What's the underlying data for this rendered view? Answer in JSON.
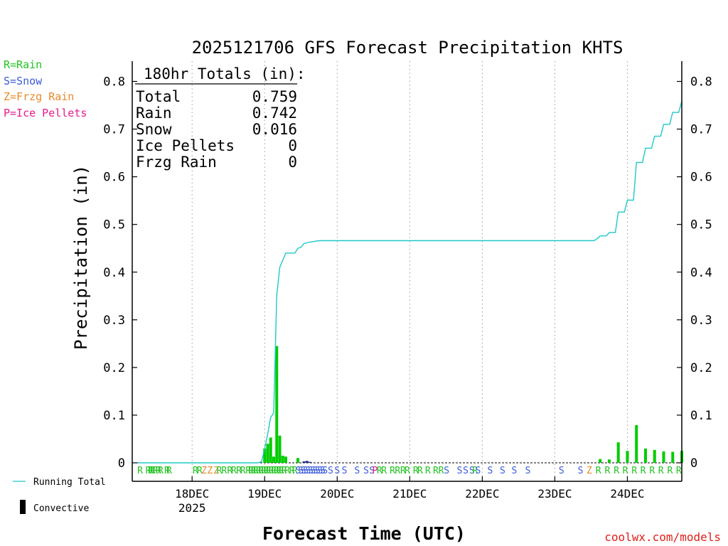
{
  "title": "2025121706 GFS Forecast Precipitation KHTS",
  "legend_types": [
    {
      "label": "R=Rain",
      "color": "#22c322"
    },
    {
      "label": "S=Snow",
      "color": "#3b5bdb"
    },
    {
      "label": "Z=Frzg Rain",
      "color": "#e8892a"
    },
    {
      "label": "P=Ice Pellets",
      "color": "#e6198c"
    }
  ],
  "totals": {
    "header": "180hr Totals (in):",
    "rows": [
      {
        "label": "Total",
        "value": "0.759"
      },
      {
        "label": "Rain",
        "value": "0.742"
      },
      {
        "label": "Snow",
        "value": "0.016"
      },
      {
        "label": "Ice Pellets",
        "value": "0"
      },
      {
        "label": "Frzg Rain",
        "value": "0"
      }
    ]
  },
  "bottom_legend": {
    "running_total": "Running Total",
    "convective": "Convective"
  },
  "credit": "coolwx.com/models",
  "colors": {
    "running_total": "#20c8c8",
    "rain_bar": "#00cc00",
    "snow_bar": "#1a2a8c",
    "convective": "#000000",
    "rain_text": "#22c322",
    "snow_text": "#3b5bdb",
    "zr_text": "#e8892a"
  },
  "chart_data": {
    "type": "bar",
    "title": "2025121706 GFS Forecast Precipitation KHTS",
    "xlabel": "Forecast Time (UTC)",
    "ylabel": "Precipitation (in)",
    "ylim": [
      0,
      0.84
    ],
    "xlim_hours": [
      0,
      180
    ],
    "y_ticks": [
      0,
      0.1,
      0.2,
      0.3,
      0.4,
      0.5,
      0.6,
      0.7,
      0.8
    ],
    "y_tick_labels": [
      "0",
      "0.1",
      "0.2",
      "0.3",
      "0.4",
      "0.5",
      "0.6",
      "0.7",
      "0.8"
    ],
    "x_ticks": [
      {
        "hour": 18,
        "label": "18DEC",
        "sublabel": "2025"
      },
      {
        "hour": 42,
        "label": "19DEC"
      },
      {
        "hour": 66,
        "label": "20DEC"
      },
      {
        "hour": 90,
        "label": "21DEC"
      },
      {
        "hour": 114,
        "label": "22DEC"
      },
      {
        "hour": 138,
        "label": "23DEC"
      },
      {
        "hour": 162,
        "label": "24DEC"
      }
    ],
    "grid": "vertical dotted",
    "series": [
      {
        "name": "Running Total",
        "type": "line",
        "points": [
          [
            0,
            0
          ],
          [
            40,
            0
          ],
          [
            41,
            0.003
          ],
          [
            42,
            0.03
          ],
          [
            43,
            0.06
          ],
          [
            44,
            0.095
          ],
          [
            45,
            0.105
          ],
          [
            46,
            0.35
          ],
          [
            47,
            0.41
          ],
          [
            48,
            0.425
          ],
          [
            49,
            0.44
          ],
          [
            51,
            0.44
          ],
          [
            52,
            0.44
          ],
          [
            53,
            0.45
          ],
          [
            54,
            0.452
          ],
          [
            55,
            0.46
          ],
          [
            57,
            0.463
          ],
          [
            60,
            0.466
          ],
          [
            63,
            0.466
          ],
          [
            90,
            0.466
          ],
          [
            120,
            0.466
          ],
          [
            151,
            0.466
          ],
          [
            152,
            0.47
          ],
          [
            153,
            0.476
          ],
          [
            155,
            0.476
          ],
          [
            156,
            0.483
          ],
          [
            158,
            0.483
          ],
          [
            159,
            0.526
          ],
          [
            161,
            0.526
          ],
          [
            162,
            0.551
          ],
          [
            164,
            0.551
          ],
          [
            165,
            0.63
          ],
          [
            167,
            0.63
          ],
          [
            168,
            0.66
          ],
          [
            170,
            0.66
          ],
          [
            171,
            0.685
          ],
          [
            173,
            0.685
          ],
          [
            174,
            0.71
          ],
          [
            176,
            0.71
          ],
          [
            177,
            0.735
          ],
          [
            179,
            0.735
          ],
          [
            180,
            0.759
          ]
        ]
      },
      {
        "name": "Rain",
        "type": "bar",
        "points": [
          [
            42,
            0.03
          ],
          [
            43,
            0.04
          ],
          [
            44,
            0.053
          ],
          [
            45,
            0.013
          ],
          [
            46,
            0.245
          ],
          [
            47,
            0.057
          ],
          [
            48,
            0.015
          ],
          [
            49,
            0.013
          ],
          [
            53,
            0.01
          ],
          [
            153,
            0.008
          ],
          [
            156,
            0.007
          ],
          [
            159,
            0.043
          ],
          [
            162,
            0.025
          ],
          [
            165,
            0.079
          ],
          [
            168,
            0.03
          ],
          [
            171,
            0.027
          ],
          [
            174,
            0.024
          ],
          [
            177,
            0.023
          ],
          [
            180,
            0.025
          ]
        ]
      },
      {
        "name": "Snow",
        "type": "bar",
        "points": [
          [
            55,
            0.003
          ],
          [
            56,
            0.004
          ],
          [
            57,
            0.002
          ]
        ]
      }
    ],
    "ptype_strip": [
      {
        "hour": 0.8,
        "t": "R"
      },
      {
        "hour": 3.5,
        "t": "R"
      },
      {
        "hour": 4.3,
        "t": "R"
      },
      {
        "hour": 5.0,
        "t": "R"
      },
      {
        "hour": 5.8,
        "t": "R"
      },
      {
        "hour": 6.9,
        "t": "R"
      },
      {
        "hour": 7.6,
        "t": "R"
      },
      {
        "hour": 9.7,
        "t": "R"
      },
      {
        "hour": 10.4,
        "t": "R"
      },
      {
        "hour": 19.1,
        "t": "R"
      },
      {
        "hour": 20.5,
        "t": "R"
      },
      {
        "hour": 22.0,
        "t": "Z"
      },
      {
        "hour": 23.9,
        "t": "Z"
      },
      {
        "hour": 26.0,
        "t": "Z"
      },
      {
        "hour": 27.0,
        "t": "R"
      },
      {
        "hour": 28.6,
        "t": "R"
      },
      {
        "hour": 30.5,
        "t": "R"
      },
      {
        "hour": 31.8,
        "t": "R"
      },
      {
        "hour": 33.5,
        "t": "R"
      },
      {
        "hour": 34.8,
        "t": "R"
      },
      {
        "hour": 36.6,
        "t": "R"
      },
      {
        "hour": 37.5,
        "t": "R"
      },
      {
        "hour": 38.3,
        "t": "R"
      },
      {
        "hour": 39.1,
        "t": "R"
      },
      {
        "hour": 40.0,
        "t": "R"
      },
      {
        "hour": 40.8,
        "t": "R"
      },
      {
        "hour": 41.7,
        "t": "R"
      },
      {
        "hour": 42.5,
        "t": "R"
      },
      {
        "hour": 43.3,
        "t": "R"
      },
      {
        "hour": 44.2,
        "t": "R"
      },
      {
        "hour": 45.0,
        "t": "R"
      },
      {
        "hour": 45.9,
        "t": "R"
      },
      {
        "hour": 46.7,
        "t": "R"
      },
      {
        "hour": 47.5,
        "t": "R"
      },
      {
        "hour": 48.4,
        "t": "R"
      },
      {
        "hour": 49.5,
        "t": "R"
      },
      {
        "hour": 51.0,
        "t": "R"
      },
      {
        "hour": 52.0,
        "t": "R"
      },
      {
        "hour": 53.1,
        "t": "S"
      },
      {
        "hour": 54.0,
        "t": "S"
      },
      {
        "hour": 54.8,
        "t": "S"
      },
      {
        "hour": 55.6,
        "t": "S"
      },
      {
        "hour": 56.4,
        "t": "S"
      },
      {
        "hour": 57.2,
        "t": "S"
      },
      {
        "hour": 58.0,
        "t": "S"
      },
      {
        "hour": 58.8,
        "t": "S"
      },
      {
        "hour": 59.6,
        "t": "S"
      },
      {
        "hour": 60.4,
        "t": "S"
      },
      {
        "hour": 61.2,
        "t": "S"
      },
      {
        "hour": 62.0,
        "t": "S"
      },
      {
        "hour": 63.8,
        "t": "S"
      },
      {
        "hour": 66.0,
        "t": "S"
      },
      {
        "hour": 68.4,
        "t": "S"
      },
      {
        "hour": 72.6,
        "t": "S"
      },
      {
        "hour": 75.6,
        "t": "S"
      },
      {
        "hour": 77.5,
        "t": "S"
      },
      {
        "hour": 78.5,
        "t": "P"
      },
      {
        "hour": 80.0,
        "t": "R"
      },
      {
        "hour": 81.5,
        "t": "R"
      },
      {
        "hour": 84.3,
        "t": "R"
      },
      {
        "hour": 86.0,
        "t": "R"
      },
      {
        "hour": 87.8,
        "t": "R"
      },
      {
        "hour": 89.2,
        "t": "R"
      },
      {
        "hour": 92.0,
        "t": "R"
      },
      {
        "hour": 93.4,
        "t": "R"
      },
      {
        "hour": 96.0,
        "t": "R"
      },
      {
        "hour": 98.6,
        "t": "R"
      },
      {
        "hour": 100.4,
        "t": "R"
      },
      {
        "hour": 102.2,
        "t": "S"
      },
      {
        "hour": 106.5,
        "t": "S"
      },
      {
        "hour": 108.5,
        "t": "S"
      },
      {
        "hour": 110.6,
        "t": "S"
      },
      {
        "hour": 111.6,
        "t": "R"
      },
      {
        "hour": 112.6,
        "t": "S"
      },
      {
        "hour": 116.6,
        "t": "S"
      },
      {
        "hour": 120.7,
        "t": "S"
      },
      {
        "hour": 124.6,
        "t": "S"
      },
      {
        "hour": 129.1,
        "t": "S"
      },
      {
        "hour": 140.2,
        "t": "S"
      },
      {
        "hour": 146.5,
        "t": "S"
      },
      {
        "hour": 149.4,
        "t": "Z"
      },
      {
        "hour": 152.4,
        "t": "R"
      },
      {
        "hour": 155.4,
        "t": "R"
      },
      {
        "hour": 158.4,
        "t": "R"
      },
      {
        "hour": 161.3,
        "t": "R"
      },
      {
        "hour": 164.3,
        "t": "R"
      },
      {
        "hour": 167.2,
        "t": "R"
      },
      {
        "hour": 170.2,
        "t": "R"
      },
      {
        "hour": 173.1,
        "t": "R"
      },
      {
        "hour": 176.1,
        "t": "R"
      },
      {
        "hour": 179.0,
        "t": "R"
      }
    ]
  }
}
